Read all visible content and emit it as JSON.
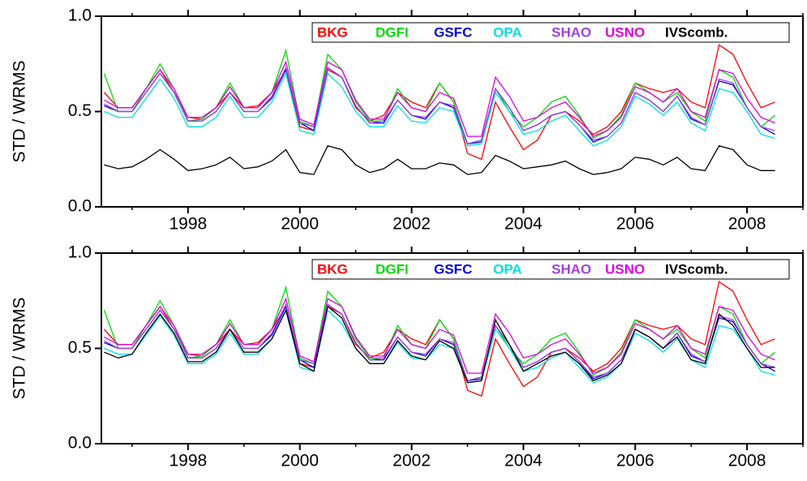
{
  "chart_data": [
    {
      "type": "line",
      "ylabel": "STD / WRMS",
      "ylim": [
        0,
        1
      ],
      "yticks": [
        {
          "value": 0,
          "label": "0.0"
        },
        {
          "value": 0.5,
          "label": "0.5"
        },
        {
          "value": 1,
          "label": "1.0"
        }
      ],
      "xlim": [
        1996.45,
        2009.0
      ],
      "xticks": [
        1998,
        2000,
        2002,
        2004,
        2006,
        2008
      ],
      "xminorticks": [
        1997,
        1999,
        2001,
        2003,
        2005,
        2007,
        2009
      ],
      "x": [
        1996.5,
        1996.75,
        1997,
        1997.25,
        1997.5,
        1997.75,
        1998,
        1998.25,
        1998.5,
        1998.75,
        1999,
        1999.25,
        1999.5,
        1999.75,
        2000,
        2000.25,
        2000.5,
        2000.75,
        2001,
        2001.25,
        2001.5,
        2001.75,
        2002,
        2002.25,
        2002.5,
        2002.75,
        2003,
        2003.25,
        2003.5,
        2003.75,
        2004,
        2004.25,
        2004.5,
        2004.75,
        2005,
        2005.25,
        2005.5,
        2005.75,
        2006,
        2006.25,
        2006.5,
        2006.75,
        2007,
        2007.25,
        2007.5,
        2007.75,
        2008,
        2008.25,
        2008.5
      ],
      "series": [
        {
          "name": "BKG",
          "color": "#ff0000",
          "values": [
            0.6,
            0.52,
            0.52,
            0.62,
            0.72,
            0.6,
            0.47,
            0.46,
            0.52,
            0.6,
            0.52,
            0.53,
            0.6,
            0.72,
            0.42,
            0.4,
            0.72,
            0.68,
            0.52,
            0.45,
            0.48,
            0.6,
            0.55,
            0.52,
            0.65,
            0.55,
            0.28,
            0.25,
            0.55,
            0.42,
            0.3,
            0.35,
            0.48,
            0.5,
            0.45,
            0.38,
            0.42,
            0.5,
            0.65,
            0.62,
            0.6,
            0.62,
            0.55,
            0.52,
            0.85,
            0.8,
            0.65,
            0.52,
            0.55
          ]
        },
        {
          "name": "DGFI",
          "color": "#00dd00",
          "values": [
            0.7,
            0.5,
            0.5,
            0.62,
            0.75,
            0.62,
            0.45,
            0.46,
            0.52,
            0.65,
            0.52,
            0.52,
            0.6,
            0.82,
            0.45,
            0.42,
            0.8,
            0.72,
            0.55,
            0.45,
            0.45,
            0.62,
            0.52,
            0.5,
            0.65,
            0.55,
            0.33,
            0.35,
            0.62,
            0.5,
            0.42,
            0.47,
            0.55,
            0.58,
            0.48,
            0.36,
            0.4,
            0.48,
            0.65,
            0.6,
            0.55,
            0.6,
            0.5,
            0.45,
            0.72,
            0.68,
            0.52,
            0.42,
            0.48
          ]
        },
        {
          "name": "GSFC",
          "color": "#0000dd",
          "values": [
            0.53,
            0.5,
            0.5,
            0.6,
            0.7,
            0.6,
            0.45,
            0.45,
            0.5,
            0.6,
            0.5,
            0.5,
            0.57,
            0.72,
            0.44,
            0.4,
            0.73,
            0.68,
            0.53,
            0.44,
            0.44,
            0.56,
            0.48,
            0.46,
            0.55,
            0.52,
            0.33,
            0.34,
            0.62,
            0.52,
            0.4,
            0.43,
            0.48,
            0.5,
            0.43,
            0.34,
            0.37,
            0.44,
            0.6,
            0.56,
            0.5,
            0.58,
            0.46,
            0.43,
            0.66,
            0.64,
            0.52,
            0.42,
            0.38
          ]
        },
        {
          "name": "OPA",
          "color": "#00e0e0",
          "values": [
            0.5,
            0.47,
            0.47,
            0.57,
            0.67,
            0.57,
            0.42,
            0.42,
            0.47,
            0.58,
            0.47,
            0.47,
            0.55,
            0.7,
            0.4,
            0.38,
            0.7,
            0.63,
            0.5,
            0.42,
            0.42,
            0.53,
            0.45,
            0.44,
            0.52,
            0.5,
            0.32,
            0.33,
            0.6,
            0.5,
            0.38,
            0.4,
            0.45,
            0.48,
            0.4,
            0.32,
            0.35,
            0.42,
            0.58,
            0.54,
            0.48,
            0.55,
            0.44,
            0.4,
            0.62,
            0.6,
            0.5,
            0.38,
            0.36
          ]
        },
        {
          "name": "SHAO",
          "color": "#a040e0",
          "values": [
            0.54,
            0.5,
            0.5,
            0.6,
            0.7,
            0.6,
            0.45,
            0.45,
            0.5,
            0.6,
            0.5,
            0.5,
            0.58,
            0.73,
            0.44,
            0.42,
            0.73,
            0.68,
            0.53,
            0.44,
            0.45,
            0.56,
            0.48,
            0.47,
            0.55,
            0.53,
            0.33,
            0.35,
            0.62,
            0.52,
            0.4,
            0.43,
            0.48,
            0.5,
            0.43,
            0.35,
            0.37,
            0.44,
            0.6,
            0.56,
            0.5,
            0.58,
            0.47,
            0.43,
            0.67,
            0.65,
            0.52,
            0.42,
            0.4
          ]
        },
        {
          "name": "USNO",
          "color": "#e000e0",
          "values": [
            0.56,
            0.52,
            0.52,
            0.62,
            0.72,
            0.62,
            0.47,
            0.47,
            0.52,
            0.63,
            0.52,
            0.52,
            0.6,
            0.76,
            0.46,
            0.43,
            0.76,
            0.72,
            0.56,
            0.46,
            0.46,
            0.6,
            0.52,
            0.5,
            0.6,
            0.57,
            0.37,
            0.37,
            0.68,
            0.58,
            0.45,
            0.47,
            0.52,
            0.55,
            0.47,
            0.37,
            0.4,
            0.47,
            0.63,
            0.6,
            0.55,
            0.62,
            0.5,
            0.47,
            0.72,
            0.7,
            0.57,
            0.47,
            0.44
          ]
        },
        {
          "name": "IVScomb.",
          "color": "#000000",
          "values": [
            0.22,
            0.2,
            0.21,
            0.25,
            0.3,
            0.25,
            0.19,
            0.2,
            0.22,
            0.26,
            0.2,
            0.21,
            0.24,
            0.3,
            0.18,
            0.17,
            0.32,
            0.3,
            0.22,
            0.18,
            0.2,
            0.25,
            0.2,
            0.2,
            0.23,
            0.22,
            0.17,
            0.18,
            0.27,
            0.24,
            0.2,
            0.21,
            0.22,
            0.24,
            0.2,
            0.17,
            0.18,
            0.2,
            0.26,
            0.25,
            0.22,
            0.26,
            0.2,
            0.19,
            0.32,
            0.3,
            0.22,
            0.19,
            0.19
          ]
        }
      ]
    },
    {
      "type": "line",
      "ylabel": "STD / WRMS",
      "ylim": [
        0,
        1
      ],
      "yticks": [
        {
          "value": 0,
          "label": "0.0"
        },
        {
          "value": 0.5,
          "label": "0.5"
        },
        {
          "value": 1,
          "label": "1.0"
        }
      ],
      "xlim": [
        1996.45,
        2009.0
      ],
      "xticks": [
        1998,
        2000,
        2002,
        2004,
        2006,
        2008
      ],
      "xminorticks": [
        1997,
        1999,
        2001,
        2003,
        2005,
        2007,
        2009
      ],
      "x": [
        1996.5,
        1996.75,
        1997,
        1997.25,
        1997.5,
        1997.75,
        1998,
        1998.25,
        1998.5,
        1998.75,
        1999,
        1999.25,
        1999.5,
        1999.75,
        2000,
        2000.25,
        2000.5,
        2000.75,
        2001,
        2001.25,
        2001.5,
        2001.75,
        2002,
        2002.25,
        2002.5,
        2002.75,
        2003,
        2003.25,
        2003.5,
        2003.75,
        2004,
        2004.25,
        2004.5,
        2004.75,
        2005,
        2005.25,
        2005.5,
        2005.75,
        2006,
        2006.25,
        2006.5,
        2006.75,
        2007,
        2007.25,
        2007.5,
        2007.75,
        2008,
        2008.25,
        2008.5
      ],
      "series": [
        {
          "name": "BKG",
          "color": "#ff0000",
          "values": [
            0.6,
            0.52,
            0.52,
            0.62,
            0.72,
            0.6,
            0.47,
            0.46,
            0.52,
            0.6,
            0.52,
            0.53,
            0.6,
            0.72,
            0.42,
            0.4,
            0.72,
            0.68,
            0.52,
            0.45,
            0.48,
            0.6,
            0.55,
            0.52,
            0.65,
            0.55,
            0.28,
            0.25,
            0.55,
            0.42,
            0.3,
            0.35,
            0.48,
            0.5,
            0.45,
            0.38,
            0.42,
            0.5,
            0.65,
            0.62,
            0.6,
            0.62,
            0.55,
            0.52,
            0.85,
            0.8,
            0.65,
            0.52,
            0.55
          ]
        },
        {
          "name": "DGFI",
          "color": "#00dd00",
          "values": [
            0.7,
            0.5,
            0.5,
            0.62,
            0.75,
            0.62,
            0.45,
            0.46,
            0.52,
            0.65,
            0.52,
            0.52,
            0.6,
            0.82,
            0.45,
            0.42,
            0.8,
            0.72,
            0.55,
            0.45,
            0.45,
            0.62,
            0.52,
            0.5,
            0.65,
            0.55,
            0.33,
            0.35,
            0.62,
            0.5,
            0.42,
            0.47,
            0.55,
            0.58,
            0.48,
            0.36,
            0.4,
            0.48,
            0.65,
            0.6,
            0.55,
            0.6,
            0.5,
            0.45,
            0.72,
            0.68,
            0.52,
            0.42,
            0.48
          ]
        },
        {
          "name": "GSFC",
          "color": "#0000dd",
          "values": [
            0.53,
            0.5,
            0.5,
            0.6,
            0.7,
            0.6,
            0.45,
            0.45,
            0.5,
            0.6,
            0.5,
            0.5,
            0.57,
            0.72,
            0.44,
            0.4,
            0.73,
            0.68,
            0.53,
            0.44,
            0.44,
            0.56,
            0.48,
            0.46,
            0.55,
            0.52,
            0.33,
            0.34,
            0.62,
            0.52,
            0.4,
            0.43,
            0.48,
            0.5,
            0.43,
            0.34,
            0.37,
            0.44,
            0.6,
            0.56,
            0.5,
            0.58,
            0.46,
            0.43,
            0.66,
            0.64,
            0.52,
            0.42,
            0.38
          ]
        },
        {
          "name": "OPA",
          "color": "#00e0e0",
          "values": [
            0.5,
            0.47,
            0.47,
            0.57,
            0.67,
            0.57,
            0.42,
            0.42,
            0.47,
            0.58,
            0.47,
            0.47,
            0.55,
            0.7,
            0.4,
            0.38,
            0.7,
            0.63,
            0.5,
            0.42,
            0.42,
            0.53,
            0.45,
            0.44,
            0.52,
            0.5,
            0.32,
            0.33,
            0.6,
            0.5,
            0.38,
            0.4,
            0.45,
            0.48,
            0.4,
            0.32,
            0.35,
            0.42,
            0.58,
            0.54,
            0.48,
            0.55,
            0.44,
            0.4,
            0.62,
            0.6,
            0.5,
            0.38,
            0.36
          ]
        },
        {
          "name": "SHAO",
          "color": "#a040e0",
          "values": [
            0.54,
            0.5,
            0.5,
            0.6,
            0.7,
            0.6,
            0.45,
            0.45,
            0.5,
            0.6,
            0.5,
            0.5,
            0.58,
            0.73,
            0.44,
            0.42,
            0.73,
            0.68,
            0.53,
            0.44,
            0.45,
            0.56,
            0.48,
            0.47,
            0.55,
            0.53,
            0.33,
            0.35,
            0.62,
            0.52,
            0.4,
            0.43,
            0.48,
            0.5,
            0.43,
            0.35,
            0.37,
            0.44,
            0.6,
            0.56,
            0.5,
            0.58,
            0.47,
            0.43,
            0.67,
            0.65,
            0.52,
            0.42,
            0.4
          ]
        },
        {
          "name": "USNO",
          "color": "#e000e0",
          "values": [
            0.56,
            0.52,
            0.52,
            0.62,
            0.72,
            0.62,
            0.47,
            0.47,
            0.52,
            0.63,
            0.52,
            0.52,
            0.6,
            0.76,
            0.46,
            0.43,
            0.76,
            0.72,
            0.56,
            0.46,
            0.46,
            0.6,
            0.52,
            0.5,
            0.6,
            0.57,
            0.37,
            0.37,
            0.68,
            0.58,
            0.45,
            0.47,
            0.52,
            0.55,
            0.47,
            0.37,
            0.4,
            0.47,
            0.63,
            0.6,
            0.55,
            0.62,
            0.5,
            0.47,
            0.72,
            0.7,
            0.57,
            0.47,
            0.44
          ]
        },
        {
          "name": "IVScomb.",
          "color": "#000000",
          "values": [
            0.48,
            0.45,
            0.47,
            0.58,
            0.68,
            0.58,
            0.43,
            0.43,
            0.48,
            0.6,
            0.48,
            0.48,
            0.55,
            0.7,
            0.42,
            0.38,
            0.72,
            0.66,
            0.5,
            0.42,
            0.42,
            0.54,
            0.46,
            0.44,
            0.54,
            0.5,
            0.32,
            0.33,
            0.65,
            0.52,
            0.38,
            0.42,
            0.46,
            0.48,
            0.42,
            0.33,
            0.36,
            0.42,
            0.6,
            0.56,
            0.5,
            0.56,
            0.44,
            0.42,
            0.68,
            0.62,
            0.5,
            0.4,
            0.4
          ]
        }
      ]
    }
  ]
}
